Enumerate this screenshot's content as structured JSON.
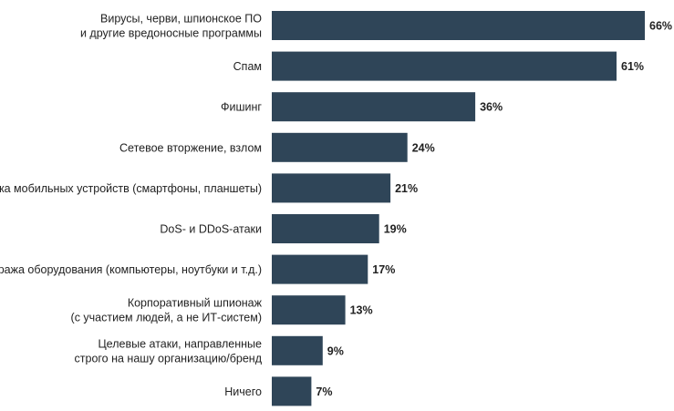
{
  "chart_data": {
    "type": "bar",
    "orientation": "horizontal",
    "categories": [
      [
        "Вирусы, черви, шпионское ПО",
        "и другие вредоносные программы"
      ],
      [
        "Спам"
      ],
      [
        "Фишинг"
      ],
      [
        "Сетевое вторжение, взлом"
      ],
      [
        "Кража мобильных устройств (смартфоны, планшеты)"
      ],
      [
        "DoS- и DDoS-атаки"
      ],
      [
        "Кража оборудования (компьютеры, ноутбуки и т.д.)"
      ],
      [
        "Корпоративный шпионаж",
        "(с участием людей, а не ИТ-систем)"
      ],
      [
        "Целевые атаки, направленные",
        "строго на нашу организацию/бренд"
      ],
      [
        "Ничего"
      ]
    ],
    "values": [
      66,
      61,
      36,
      24,
      21,
      19,
      17,
      13,
      9,
      7
    ],
    "value_labels": [
      "66%",
      "61%",
      "36%",
      "24%",
      "21%",
      "19%",
      "17%",
      "13%",
      "9%",
      "7%"
    ],
    "unit": "%",
    "bar_color": "#2f4558",
    "title": "",
    "xlabel": "",
    "ylabel": "",
    "grid": false,
    "legend": "none"
  }
}
